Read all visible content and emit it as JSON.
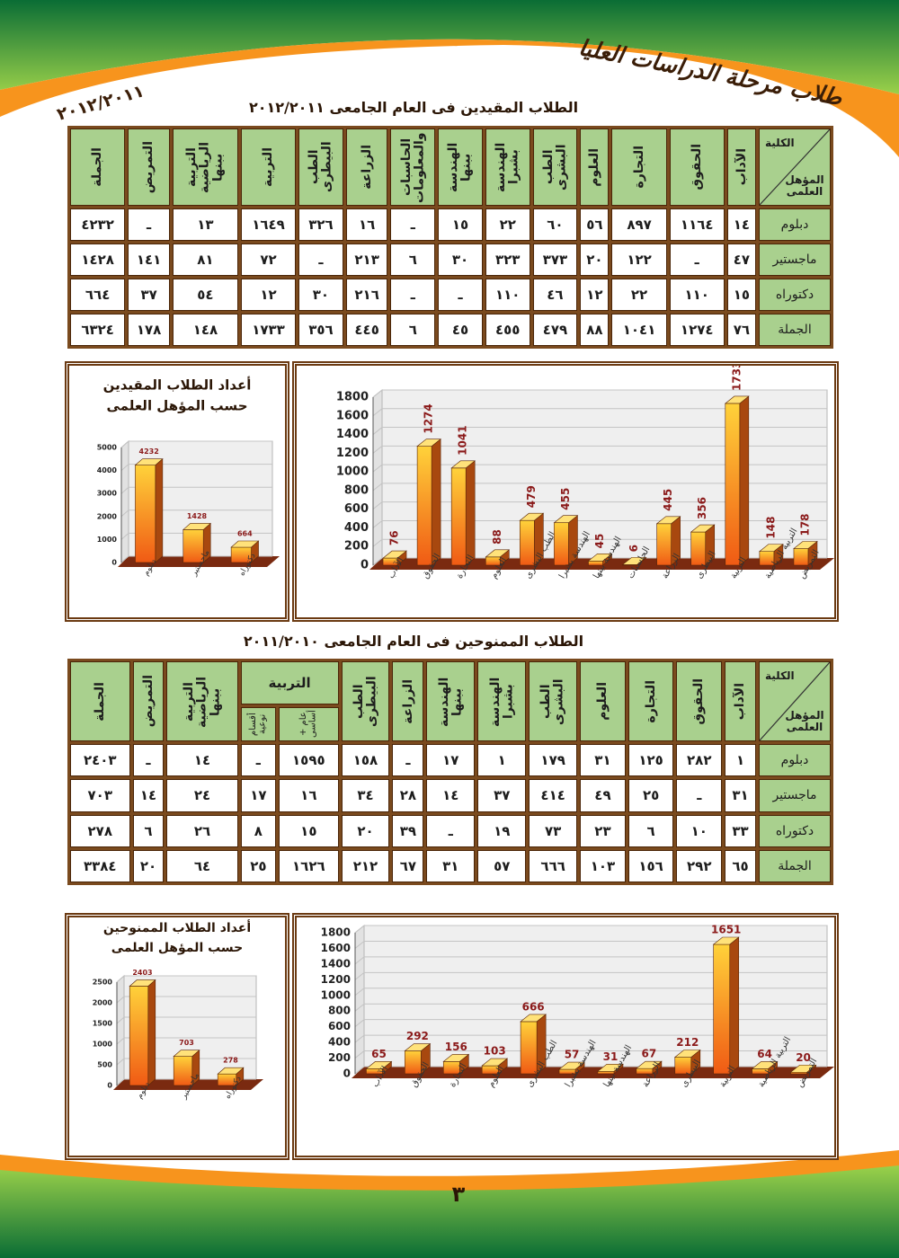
{
  "header": {
    "title": "طلاب مرحلة الدراسات العليا",
    "year": "٢٠١٢/٢٠١١"
  },
  "section_1": {
    "title": "الطلاب المقيدين فى العام الجامعى ٢٠١٢/٢٠١١",
    "table": {
      "corner": [
        "الكلية",
        "المؤهل العلمى"
      ],
      "columns": [
        "الآداب",
        "الحقوق",
        "التجارة",
        "العلوم",
        "الطب البشرى",
        "الهندسة بشبرا",
        "الهندسة ببنها",
        "الحاسبات والمعلومات",
        "الزراعة",
        "الطب البيطرى",
        "التربية",
        "التربية الرياضية ببنها",
        "التمريض",
        "الجملة"
      ],
      "rows": [
        [
          "دبلوم",
          "١٤",
          "١١٦٤",
          "٨٩٧",
          "٥٦",
          "٦٠",
          "٢٢",
          "١٥",
          "ـ",
          "١٦",
          "٣٢٦",
          "١٦٤٩",
          "١٣",
          "ـ",
          "٤٢٣٢"
        ],
        [
          "ماجستير",
          "٤٧",
          "ـ",
          "١٢٢",
          "٢٠",
          "٣٧٣",
          "٣٢٣",
          "٣٠",
          "٦",
          "٢١٣",
          "ـ",
          "٧٢",
          "٨١",
          "١٤١",
          "١٤٢٨"
        ],
        [
          "دكتوراه",
          "١٥",
          "١١٠",
          "٢٢",
          "١٢",
          "٤٦",
          "١١٠",
          "ـ",
          "ـ",
          "٢١٦",
          "٣٠",
          "١٢",
          "٥٤",
          "٣٧",
          "٦٦٤"
        ],
        [
          "الجملة",
          "٧٦",
          "١٢٧٤",
          "١٠٤١",
          "٨٨",
          "٤٧٩",
          "٤٥٥",
          "٤٥",
          "٦",
          "٤٤٥",
          "٣٥٦",
          "١٧٣٣",
          "١٤٨",
          "١٧٨",
          "٦٣٢٤"
        ]
      ]
    }
  },
  "section_2": {
    "title": "الطلاب الممنوحين فى العام الجامعى ٢٠١١/٢٠١٠",
    "table": {
      "corner": [
        "الكلية",
        "المؤهل العلمى"
      ],
      "columns": [
        "الآداب",
        "الحقوق",
        "التجارة",
        "العلوم",
        "الطب البشرى",
        "الهندسة بشبرا",
        "الهندسة ببنها",
        "الزراعة",
        "الطب البيطرى",
        {
          "name": "التربية",
          "sub": [
            "عام + أساسى",
            "أقسام نوعية"
          ]
        },
        "التربية الرياضية ببنها",
        "التمريض",
        "الجملة"
      ],
      "rows": [
        [
          "دبلوم",
          "١",
          "٢٨٢",
          "١٢٥",
          "٣١",
          "١٧٩",
          "١",
          "١٧",
          "ـ",
          "١٥٨",
          "١٥٩٥",
          "ـ",
          "١٤",
          "ـ",
          "٢٤٠٣"
        ],
        [
          "ماجستير",
          "٣١",
          "ـ",
          "٢٥",
          "٤٩",
          "٤١٤",
          "٣٧",
          "١٤",
          "٢٨",
          "٣٤",
          "١٦",
          "١٧",
          "٢٤",
          "١٤",
          "٧٠٣"
        ],
        [
          "دكتوراه",
          "٣٣",
          "١٠",
          "٦",
          "٢٣",
          "٧٣",
          "١٩",
          "ـ",
          "٣٩",
          "٢٠",
          "١٥",
          "٨",
          "٢٦",
          "٦",
          "٢٧٨"
        ],
        [
          "الجملة",
          "٦٥",
          "٢٩٢",
          "١٥٦",
          "١٠٣",
          "٦٦٦",
          "٥٧",
          "٣١",
          "٦٧",
          "٢١٢",
          "١٦٢٦",
          "٢٥",
          "٦٤",
          "٢٠",
          "٣٣٨٤"
        ]
      ]
    }
  },
  "chart_data": [
    {
      "type": "bar",
      "color": "#f7941d",
      "categories": [
        "الآداب",
        "الحقوق",
        "التجارة",
        "العلوم",
        "الطب البشرى",
        "الهندسة بشبرا",
        "الهندسة ببنها",
        "الحاسبات",
        "الزراعة",
        "البيطرى",
        "التربية",
        "التربية الرياضية",
        "التمريض"
      ],
      "values": [
        76,
        1274,
        1041,
        88,
        479,
        455,
        45,
        6,
        445,
        356,
        1733,
        148,
        178
      ],
      "ylim": [
        0,
        1800
      ],
      "yticks": [
        0,
        200,
        400,
        600,
        800,
        1000,
        1200,
        1400,
        1600,
        1800
      ],
      "grid": true
    },
    {
      "type": "bar",
      "color": "#f7941d",
      "title": [
        "أعداد الطلاب المقيدين",
        "حسب المؤهل العلمى"
      ],
      "categories": [
        "دبلوم",
        "ماجستير",
        "دكتوراه"
      ],
      "values": [
        4232,
        1428,
        664
      ],
      "ylim": [
        0,
        5000
      ],
      "yticks": [
        0,
        1000,
        2000,
        3000,
        4000,
        5000
      ],
      "grid": true
    },
    {
      "type": "bar",
      "color": "#f7941d",
      "categories": [
        "الآداب",
        "الحقوق",
        "التجارة",
        "العلوم",
        "الطب البشرى",
        "الهندسة بشبرا",
        "الهندسة ببنها",
        "الزراعة",
        "البيطرى",
        "التربية",
        "التربية الرياضية",
        "التمريض"
      ],
      "values": [
        65,
        292,
        156,
        103,
        666,
        57,
        31,
        67,
        212,
        1651,
        64,
        20
      ],
      "ylim": [
        0,
        1800
      ],
      "yticks": [
        0,
        200,
        400,
        600,
        800,
        1000,
        1200,
        1400,
        1600,
        1800
      ],
      "grid": true
    },
    {
      "type": "bar",
      "color": "#f7941d",
      "title": [
        "أعداد الطلاب الممنوحين",
        "حسب المؤهل العلمى"
      ],
      "categories": [
        "دبلوم",
        "ماجستير",
        "دكتوراه"
      ],
      "values": [
        2403,
        703,
        278
      ],
      "ylim": [
        0,
        2500
      ],
      "yticks": [
        0,
        500,
        1000,
        1500,
        2000,
        2500
      ],
      "grid": true
    }
  ],
  "page_number": "٣"
}
